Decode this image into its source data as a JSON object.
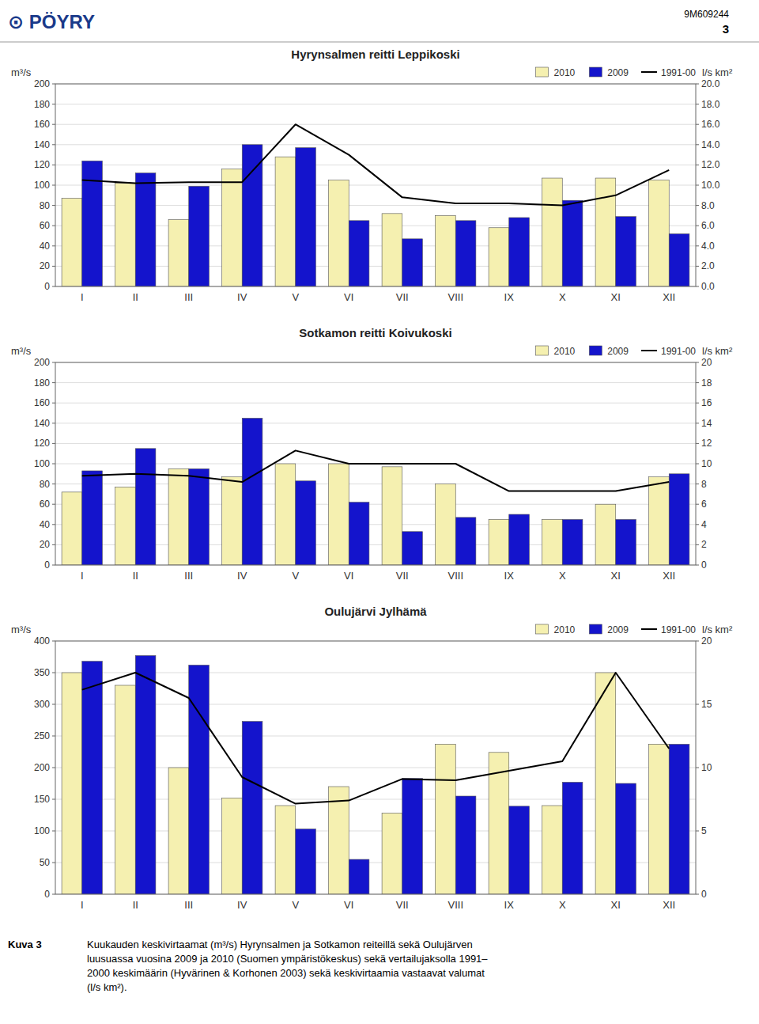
{
  "chart_data": [
    {
      "type": "bar",
      "title": "Hyrynsalmen reitti Leppikoski",
      "categories": [
        "I",
        "II",
        "III",
        "IV",
        "V",
        "VI",
        "VII",
        "VIII",
        "IX",
        "X",
        "XI",
        "XII"
      ],
      "series": [
        {
          "name": "2010",
          "color": "#F5F0B0",
          "values": [
            87,
            102,
            66,
            116,
            128,
            105,
            72,
            70,
            58,
            107,
            107,
            105
          ]
        },
        {
          "name": "2009",
          "color": "#1414CC",
          "values": [
            124,
            112,
            99,
            140,
            137,
            65,
            47,
            65,
            68,
            85,
            69,
            52
          ]
        },
        {
          "name": "1991-00",
          "type": "line",
          "color": "#000000",
          "values": [
            105,
            102,
            103,
            103,
            160,
            130,
            88,
            82,
            82,
            80,
            90,
            115
          ]
        }
      ],
      "y_label": "m³/s",
      "y2_label": "l/s km²",
      "ylim": [
        0,
        200
      ],
      "yticks": [
        0,
        20,
        40,
        60,
        80,
        100,
        120,
        140,
        160,
        180,
        200
      ],
      "y2lim": [
        0,
        20.0
      ],
      "y2ticks": [
        {
          "value": 0.0,
          "label": "0.0"
        },
        {
          "value": 2.0,
          "label": "2.0"
        },
        {
          "value": 4.0,
          "label": "4.0"
        },
        {
          "value": 6.0,
          "label": "6.0"
        },
        {
          "value": 8.0,
          "label": "8.0"
        },
        {
          "value": 10.0,
          "label": "10.0"
        },
        {
          "value": 12.0,
          "label": "12.0"
        },
        {
          "value": 14.0,
          "label": "14.0"
        },
        {
          "value": 16.0,
          "label": "16.0"
        },
        {
          "value": 18.0,
          "label": "18.0"
        },
        {
          "value": 20.0,
          "label": "20.0"
        }
      ],
      "grid": true,
      "legend": "upper right"
    },
    {
      "type": "bar",
      "title": "Sotkamon reitti Koivukoski",
      "categories": [
        "I",
        "II",
        "III",
        "IV",
        "V",
        "VI",
        "VII",
        "VIII",
        "IX",
        "X",
        "XI",
        "XII"
      ],
      "series": [
        {
          "name": "2010",
          "color": "#F5F0B0",
          "values": [
            72,
            77,
            95,
            87,
            100,
            100,
            97,
            80,
            45,
            45,
            60,
            87
          ]
        },
        {
          "name": "2009",
          "color": "#1414CC",
          "values": [
            93,
            115,
            95,
            145,
            83,
            62,
            33,
            47,
            50,
            45,
            45,
            90
          ]
        },
        {
          "name": "1991-00",
          "type": "line",
          "color": "#000000",
          "values": [
            88,
            90,
            88,
            82,
            113,
            100,
            100,
            100,
            73,
            73,
            73,
            82
          ]
        }
      ],
      "y_label": "m³/s",
      "y2_label": "l/s km²",
      "ylim": [
        0,
        200
      ],
      "yticks": [
        0,
        20,
        40,
        60,
        80,
        100,
        120,
        140,
        160,
        180,
        200
      ],
      "y2lim": [
        0,
        20
      ],
      "y2ticks": [
        0,
        2,
        4,
        6,
        8,
        10,
        12,
        14,
        16,
        18,
        20
      ],
      "grid": true,
      "legend": "upper right"
    },
    {
      "type": "bar",
      "title": "Oulujärvi Jylhämä",
      "categories": [
        "I",
        "II",
        "III",
        "IV",
        "V",
        "VI",
        "VII",
        "VIII",
        "IX",
        "X",
        "XI",
        "XII"
      ],
      "series": [
        {
          "name": "2010",
          "color": "#F5F0B0",
          "values": [
            350,
            330,
            200,
            152,
            140,
            170,
            128,
            237,
            224,
            140,
            350,
            237
          ]
        },
        {
          "name": "2009",
          "color": "#1414CC",
          "values": [
            368,
            377,
            362,
            273,
            103,
            55,
            183,
            155,
            139,
            177,
            175,
            237
          ]
        },
        {
          "name": "1991-00",
          "type": "line",
          "color": "#000000",
          "values": [
            323,
            350,
            310,
            185,
            143,
            148,
            182,
            180,
            195,
            210,
            350,
            230
          ]
        }
      ],
      "y_label": "m³/s",
      "y2_label": "l/s km²",
      "ylim": [
        0,
        400
      ],
      "yticks": [
        0,
        50,
        100,
        150,
        200,
        250,
        300,
        350,
        400
      ],
      "y2lim": [
        0,
        20
      ],
      "y2ticks": [
        0,
        5,
        10,
        15,
        20
      ],
      "grid": true,
      "legend": "upper right"
    }
  ],
  "annotations": [
    "⊙ PÖYRY",
    "9M609244",
    "3",
    "Kuva 3",
    "Kuukauden keskivirtaamat (m³/s) Hyrynsalmen ja Sotkamon reiteillä sekä Oulujärven",
    "luusuassa vuosina 2009 ja 2010 (Suomen ympäristökeskus) sekä vertailujaksolla 1991–",
    "2000 keskimäärin (Hyvärinen & Korhonen 2003) sekä keskivirtaamia vastaavat valumat",
    "(l/s km²)."
  ]
}
